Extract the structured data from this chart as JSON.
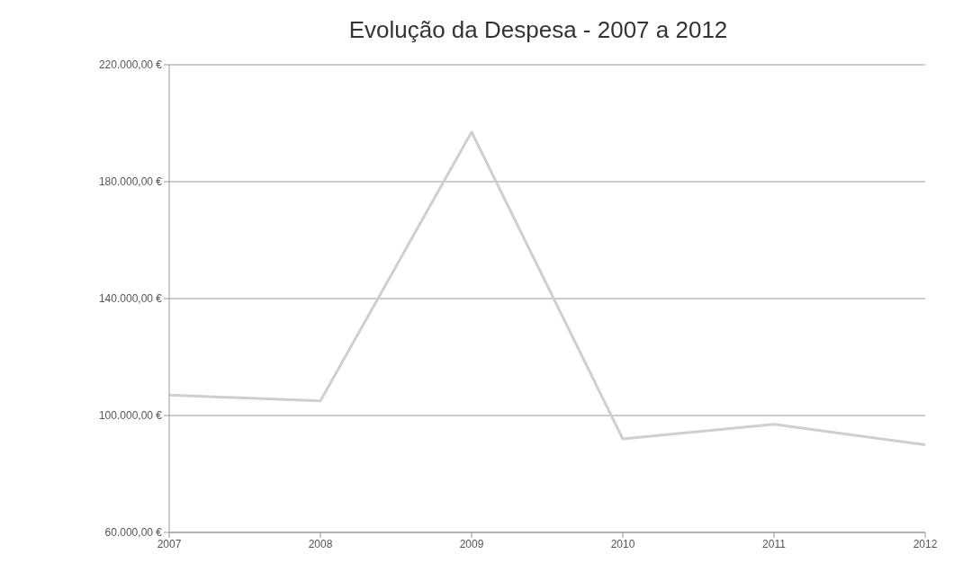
{
  "chart_data": {
    "type": "line",
    "title": "Evolução da Despesa  - 2007 a 2012",
    "x": [
      2007,
      2008,
      2009,
      2010,
      2011,
      2012
    ],
    "series": [
      {
        "color": "#cfcfcf",
        "values": [
          107000,
          105000,
          197000,
          92000,
          97000,
          90000
        ]
      }
    ],
    "xlim": [
      2007,
      2012
    ],
    "xticks": [
      2007,
      2008,
      2009,
      2010,
      2011,
      2012
    ],
    "ylim": [
      60000,
      220000
    ],
    "yticks": [
      {
        "value": 60000,
        "label": "60.000,00 €"
      },
      {
        "value": 100000,
        "label": "100.000,00 €"
      },
      {
        "value": 140000,
        "label": "140.000,00 €"
      },
      {
        "value": 180000,
        "label": "180.000,00 €"
      },
      {
        "value": 220000,
        "label": "220.000,00 €"
      }
    ],
    "grid": "y",
    "marker": "none",
    "line_style": "solid",
    "legend": false
  }
}
